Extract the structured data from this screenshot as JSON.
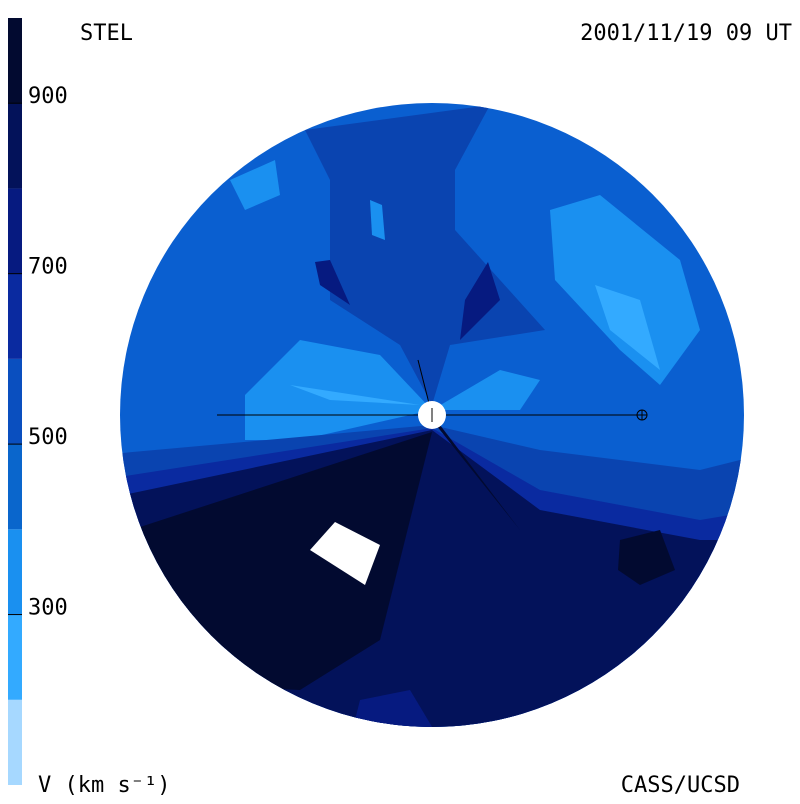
{
  "header": {
    "left": "STEL",
    "right": "2001/11/19 09 UT"
  },
  "footer": {
    "left": "V (km s⁻¹)",
    "right": "CASS/UCSD"
  },
  "colorbar": {
    "range": [
      100,
      1000
    ],
    "ticks": [
      300,
      500,
      700,
      900
    ],
    "colors": [
      "#a6d8ff",
      "#33aaff",
      "#1a90f0",
      "#0a66cc",
      "#0a4fbf",
      "#0a2aa0",
      "#061a80",
      "#03125a",
      "#020a30"
    ]
  }
}
